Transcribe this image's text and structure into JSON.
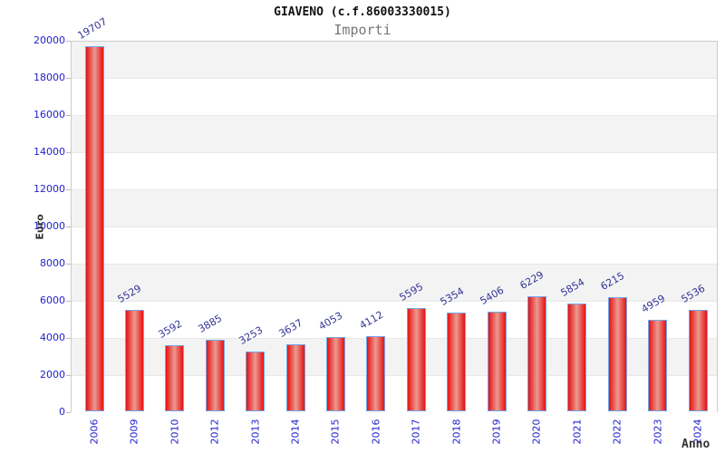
{
  "header": {
    "title": "GIAVENO (c.f.86003330015)",
    "subtitle": "Importi"
  },
  "chart_data": {
    "type": "bar",
    "title": "GIAVENO (c.f.86003330015)",
    "subtitle": "Importi",
    "xlabel": "Anno",
    "ylabel": "Euro",
    "categories": [
      "2006",
      "2009",
      "2010",
      "2012",
      "2013",
      "2014",
      "2015",
      "2016",
      "2017",
      "2018",
      "2019",
      "2020",
      "2021",
      "2022",
      "2023",
      "2024"
    ],
    "values": [
      19707,
      5529,
      3592,
      3885,
      3253,
      3637,
      4053,
      4112,
      5595,
      5354,
      5406,
      6229,
      5854,
      6215,
      4959,
      5536
    ],
    "ylim": [
      0,
      20000
    ],
    "ytick_step": 2000,
    "yticks": [
      0,
      2000,
      4000,
      6000,
      8000,
      10000,
      12000,
      14000,
      16000,
      18000,
      20000
    ],
    "grid": "alternating horizontal bands every 2000 units, gray band at top (18000-20000)",
    "legend": "none",
    "bar_labels_rotated": true,
    "colors": {
      "tick_label": "#2222cc",
      "value_label": "#333399",
      "bar_edge": "#e51212",
      "bar_center": "#ec9a90",
      "bar_border": "#74a7e8",
      "band_gray": "#f3f3f3",
      "band_line": "#e8e8e8",
      "frame": "#cccccc",
      "title_color": "#111111",
      "subtitle_color": "#777777",
      "axis_title_color": "#333333"
    }
  }
}
